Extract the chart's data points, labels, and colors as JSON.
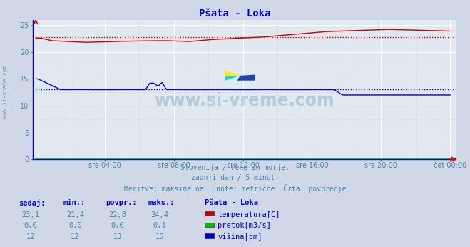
{
  "title": "Pšata - Loka",
  "bg_color": "#d0d8e8",
  "plot_bg_color": "#e0e8f0",
  "grid_color_major": "#ffffff",
  "grid_color_minor": "#e8c8c8",
  "title_color": "#0000cc",
  "title_fontsize": 10,
  "tick_color": "#4488aa",
  "watermark_text": "www.si-vreme.com",
  "subtitle_lines": [
    "Slovenija / reke in morje.",
    "zadnji dan / 5 minut.",
    "Meritve: maksimalne  Enote: metrične  Črta: povprečje"
  ],
  "xlim": [
    0,
    288
  ],
  "ylim": [
    0,
    26
  ],
  "yticks": [
    0,
    5,
    10,
    15,
    20,
    25
  ],
  "xtick_labels": [
    "sre 04:00",
    "sre 08:00",
    "sre 12:00",
    "sre 16:00",
    "sre 20:00",
    "čet 00:00"
  ],
  "xtick_positions": [
    48,
    96,
    144,
    192,
    240,
    288
  ],
  "temp_color": "#cc0000",
  "pretok_color": "#00bb00",
  "visina_color": "#0000cc",
  "temp_avg": 22.8,
  "visina_avg": 13.0,
  "legend_title": "Pšata - Loka",
  "legend_items": [
    {
      "label": "temperatura[C]",
      "color": "#cc0000"
    },
    {
      "label": "pretok[m3/s]",
      "color": "#00bb00"
    },
    {
      "label": "višina[cm]",
      "color": "#0000cc"
    }
  ],
  "table_headers": [
    "sedaj:",
    "min.:",
    "povpr.:",
    "maks.:"
  ],
  "table_rows": [
    [
      "23,1",
      "21,4",
      "22,8",
      "24,4"
    ],
    [
      "0,0",
      "0,0",
      "0,0",
      "0,1"
    ],
    [
      "12",
      "12",
      "13",
      "15"
    ]
  ],
  "left_label": "www.si-vreme.com"
}
